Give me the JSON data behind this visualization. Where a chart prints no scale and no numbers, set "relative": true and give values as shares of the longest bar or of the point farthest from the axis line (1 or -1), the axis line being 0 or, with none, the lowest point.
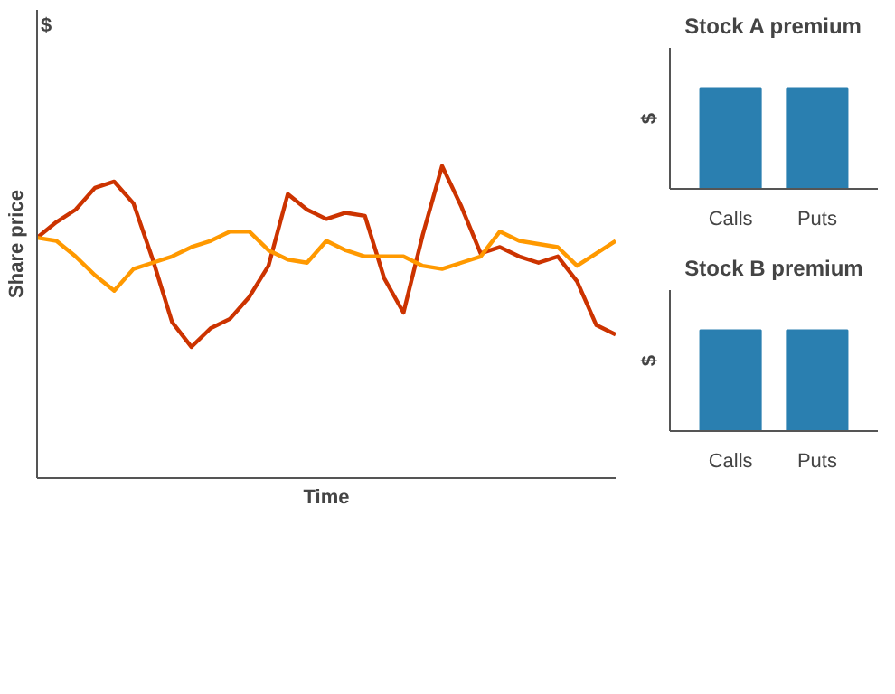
{
  "chart_data": [
    {
      "type": "line",
      "xlabel": "Time",
      "ylabel": "Share price",
      "annotations": [
        "$"
      ],
      "relative": true,
      "categories": [
        null,
        null,
        null,
        null,
        null,
        null,
        null,
        null,
        null,
        null,
        null,
        null,
        null,
        null,
        null,
        null,
        null,
        null,
        null,
        null,
        null,
        null,
        null,
        null,
        null,
        null,
        null,
        null,
        null,
        null,
        null
      ],
      "series": [
        {
          "color": "#cc3300",
          "values": [
            0.77,
            0.82,
            0.86,
            0.93,
            0.95,
            0.88,
            0.7,
            0.5,
            0.42,
            0.48,
            0.51,
            0.58,
            0.68,
            0.91,
            0.86,
            0.83,
            0.85,
            0.84,
            0.64,
            0.53,
            0.78,
            1.0,
            0.87,
            0.72,
            0.74,
            0.71,
            0.69,
            0.71,
            0.63,
            0.49,
            0.46
          ]
        },
        {
          "color": "#ff9900",
          "values": [
            0.77,
            0.76,
            0.71,
            0.65,
            0.6,
            0.67,
            0.69,
            0.71,
            0.74,
            0.76,
            0.79,
            0.79,
            0.73,
            0.7,
            0.69,
            0.76,
            0.73,
            0.71,
            0.71,
            0.71,
            0.68,
            0.67,
            0.69,
            0.71,
            0.79,
            0.76,
            0.75,
            0.74,
            0.68,
            0.72,
            0.76
          ]
        }
      ]
    },
    {
      "type": "bar",
      "title": "Stock A premium",
      "ylabel": "$",
      "relative": true,
      "categories": [
        "Calls",
        "Puts"
      ],
      "values": [
        1,
        1
      ],
      "color": "#2a7fb0"
    },
    {
      "type": "bar",
      "title": "Stock B premium",
      "ylabel": "$",
      "relative": true,
      "categories": [
        "Calls",
        "Puts"
      ],
      "values": [
        1,
        1
      ],
      "color": "#2a7fb0"
    }
  ]
}
